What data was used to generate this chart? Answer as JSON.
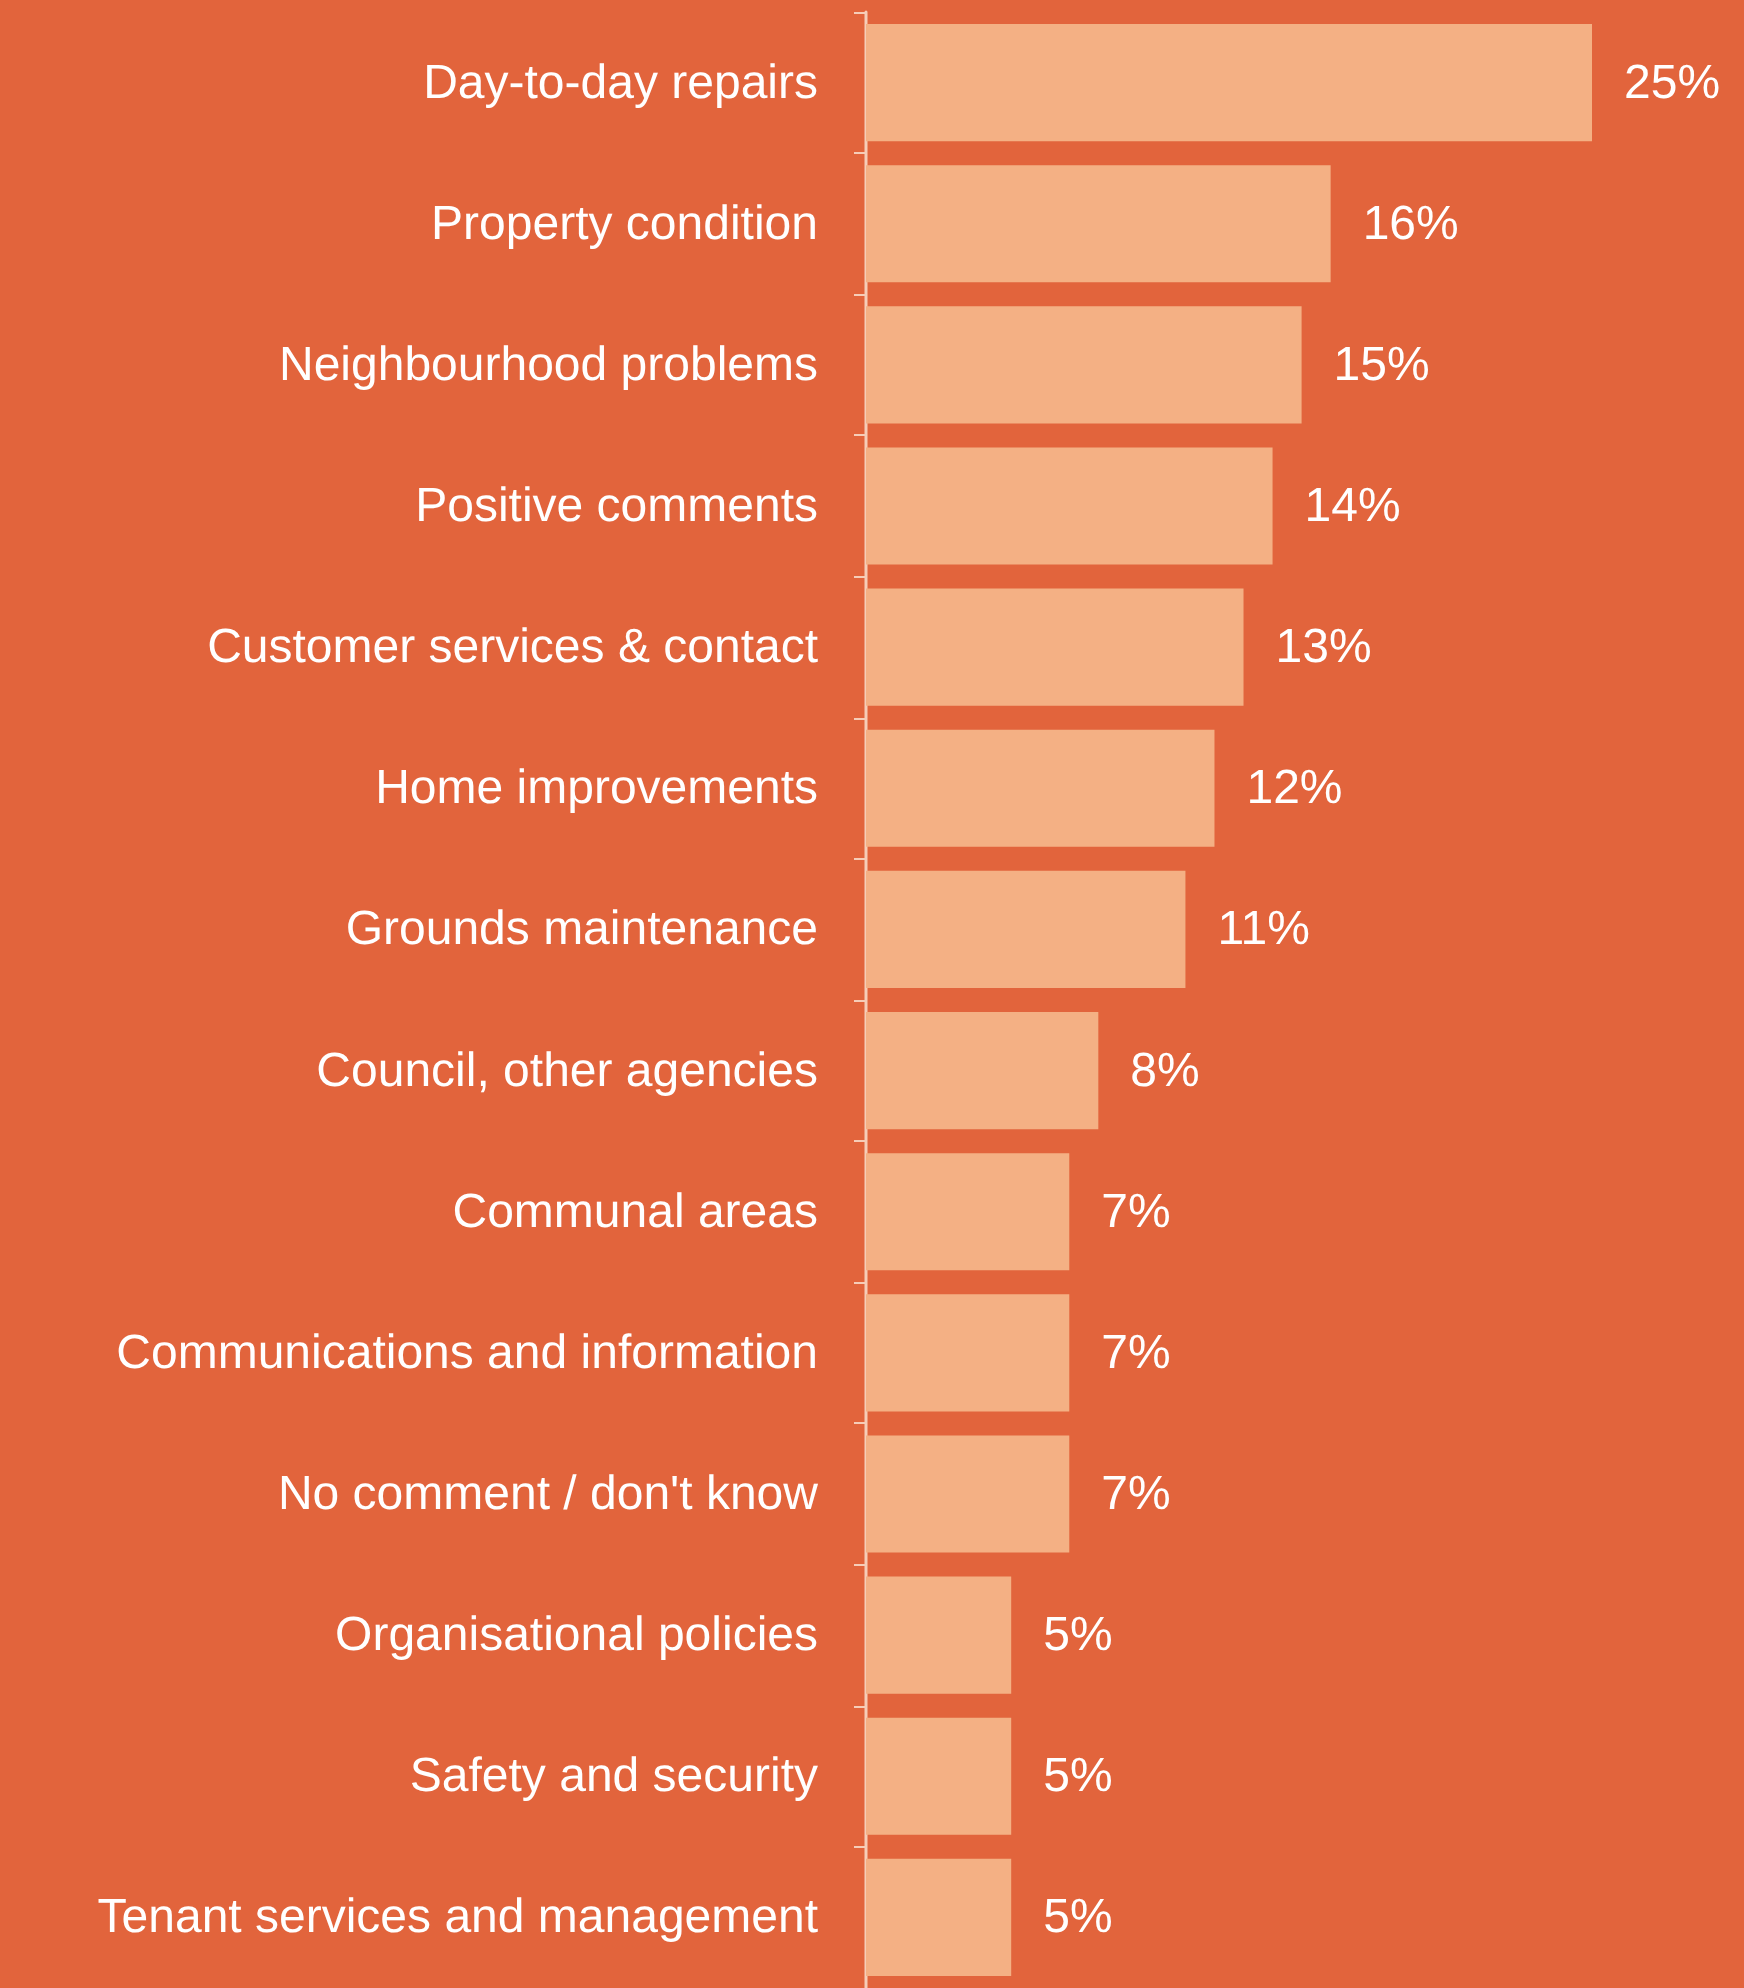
{
  "chart_data": {
    "type": "bar",
    "orientation": "horizontal",
    "categories": [
      "Day-to-day repairs",
      "Property condition",
      "Neighbourhood problems",
      "Positive comments",
      "Customer services & contact",
      "Home improvements",
      "Grounds maintenance",
      "Council, other agencies",
      "Communal areas",
      "Communications and information",
      "No comment / don't know",
      "Organisational policies",
      "Safety and security",
      "Tenant services and management"
    ],
    "values": [
      25,
      16,
      15,
      14,
      13,
      12,
      11,
      8,
      7,
      7,
      7,
      5,
      5,
      5
    ],
    "value_labels": [
      "25%",
      "16%",
      "15%",
      "14%",
      "13%",
      "12%",
      "11%",
      "8%",
      "7%",
      "7%",
      "7%",
      "5%",
      "5%",
      "5%"
    ],
    "color": "#f4b084"
  }
}
